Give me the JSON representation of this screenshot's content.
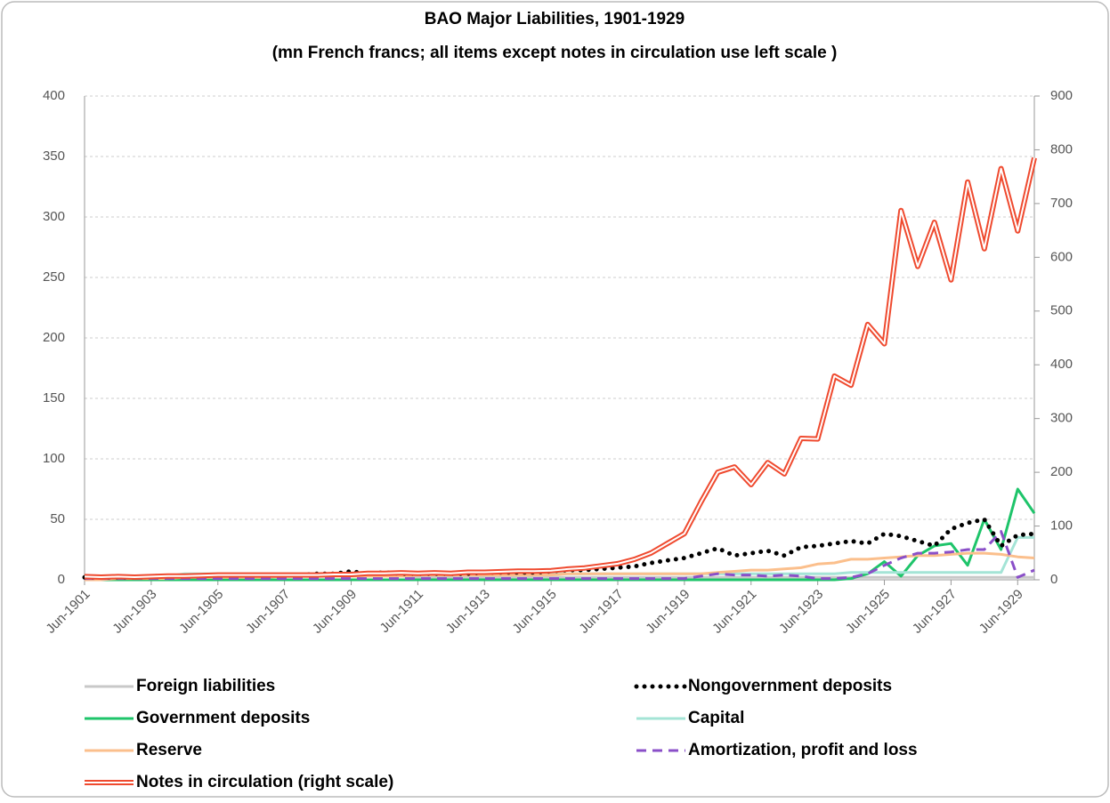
{
  "chart_data": {
    "type": "line",
    "title": "BAO Major Liabilities, 1901-1929",
    "subtitle": "(mn French francs; all items except notes in circulation use left scale )",
    "categories": [
      "Jun-1901",
      null,
      null,
      null,
      "Jun-1903",
      null,
      null,
      null,
      "Jun-1905",
      null,
      null,
      null,
      "Jun-1907",
      null,
      null,
      null,
      "Jun-1909",
      null,
      null,
      null,
      "Jun-1911",
      null,
      null,
      null,
      "Jun-1913",
      null,
      null,
      null,
      "Jun-1915",
      null,
      null,
      null,
      "Jun-1917",
      null,
      null,
      null,
      "Jun-1919",
      null,
      null,
      null,
      "Jun-1921",
      null,
      null,
      null,
      "Jun-1923",
      null,
      null,
      null,
      "Jun-1925",
      null,
      null,
      null,
      "Jun-1927",
      null,
      null,
      null,
      "Jun-1929",
      null
    ],
    "ylim": [
      0,
      400
    ],
    "yticks": [
      0,
      50,
      100,
      150,
      200,
      250,
      300,
      350,
      400
    ],
    "y2lim": [
      0,
      900
    ],
    "y2ticks": [
      0,
      100,
      200,
      300,
      400,
      500,
      600,
      700,
      800,
      900
    ],
    "grid": true,
    "series": [
      {
        "name": "Foreign liabilities",
        "color": "#c8c8c8",
        "style": "solid",
        "values": [
          3,
          3,
          3,
          3,
          3,
          3,
          3,
          3,
          3,
          3,
          3,
          3,
          3,
          3,
          3,
          3,
          3,
          3,
          3,
          3,
          2,
          2,
          2,
          2,
          2,
          2,
          2,
          2,
          2,
          2,
          2,
          2,
          2,
          2,
          2,
          2,
          2,
          2,
          2,
          2,
          2,
          2,
          2,
          2,
          2,
          2,
          2,
          2,
          2,
          2,
          2,
          2,
          2,
          2,
          2,
          2,
          2,
          2
        ]
      },
      {
        "name": "Nongovernment deposits",
        "color": "#000000",
        "style": "dotted",
        "values": [
          2,
          2,
          2,
          2,
          3,
          3,
          3,
          3,
          4,
          4,
          4,
          4,
          4,
          4,
          5,
          5,
          7,
          5,
          6,
          5,
          5,
          5,
          5,
          5,
          6,
          6,
          6,
          6,
          7,
          8,
          8,
          9,
          10,
          11,
          14,
          16,
          18,
          22,
          26,
          20,
          22,
          24,
          20,
          27,
          28,
          30,
          32,
          30,
          38,
          36,
          32,
          28,
          42,
          47,
          50,
          28,
          37,
          38
        ]
      },
      {
        "name": "Government deposits",
        "color": "#1ec46a",
        "style": "solid",
        "values": [
          0,
          0,
          0,
          0,
          0,
          0,
          0,
          0,
          0,
          0,
          0,
          0,
          0,
          0,
          0,
          0,
          0,
          0,
          0,
          0,
          0,
          0,
          0,
          0,
          0,
          0,
          0,
          0,
          0,
          0,
          0,
          0,
          0,
          0,
          0,
          0,
          0,
          0,
          0,
          0,
          0,
          0,
          0,
          0,
          0,
          0,
          1,
          5,
          15,
          3,
          20,
          28,
          30,
          12,
          50,
          25,
          75,
          55
        ]
      },
      {
        "name": "Capital",
        "color": "#a4e4d6",
        "style": "solid",
        "values": [
          3,
          3,
          3,
          3,
          3,
          3,
          5,
          5,
          5,
          5,
          5,
          5,
          5,
          5,
          5,
          5,
          5,
          5,
          5,
          5,
          5,
          5,
          5,
          5,
          5,
          5,
          5,
          5,
          5,
          5,
          5,
          5,
          5,
          5,
          5,
          5,
          5,
          5,
          5,
          5,
          5,
          5,
          5,
          5,
          5,
          5,
          6,
          6,
          6,
          6,
          6,
          6,
          6,
          6,
          6,
          6,
          35,
          35
        ]
      },
      {
        "name": "Reserve",
        "color": "#fbbf8c",
        "style": "solid",
        "values": [
          0,
          0,
          1,
          1,
          1,
          1,
          2,
          2,
          2,
          2,
          2,
          2,
          3,
          3,
          3,
          3,
          3,
          3,
          3,
          3,
          4,
          4,
          4,
          4,
          4,
          4,
          4,
          4,
          4,
          5,
          5,
          5,
          5,
          5,
          5,
          5,
          5,
          5,
          6,
          7,
          8,
          8,
          9,
          10,
          13,
          14,
          17,
          17,
          18,
          19,
          20,
          20,
          21,
          22,
          22,
          21,
          19,
          18
        ]
      },
      {
        "name": "Amortization, profit and loss",
        "color": "#8a4fc8",
        "style": "dashed",
        "values": [
          1,
          1,
          1,
          1,
          1,
          1,
          1,
          1,
          1,
          1,
          1,
          1,
          1,
          1,
          1,
          1,
          1,
          1,
          1,
          1,
          1,
          1,
          1,
          1,
          1,
          1,
          1,
          1,
          1,
          1,
          1,
          1,
          1,
          1,
          1,
          1,
          1,
          3,
          5,
          4,
          4,
          3,
          4,
          3,
          1,
          1,
          2,
          5,
          12,
          18,
          22,
          22,
          23,
          25,
          25,
          40,
          2,
          8
        ]
      },
      {
        "name": "Notes in circulation (right scale)",
        "color": "#ef4a2f",
        "style": "double",
        "axis": "y2",
        "values": [
          6,
          5,
          6,
          5,
          6,
          7,
          7,
          8,
          9,
          9,
          9,
          9,
          9,
          9,
          9,
          10,
          10,
          12,
          12,
          13,
          12,
          13,
          12,
          14,
          14,
          15,
          16,
          16,
          17,
          20,
          22,
          26,
          30,
          38,
          50,
          68,
          86,
          145,
          200,
          210,
          177,
          218,
          197,
          263,
          262,
          379,
          362,
          475,
          439,
          687,
          583,
          665,
          558,
          740,
          616,
          765,
          649,
          785
        ]
      }
    ]
  }
}
